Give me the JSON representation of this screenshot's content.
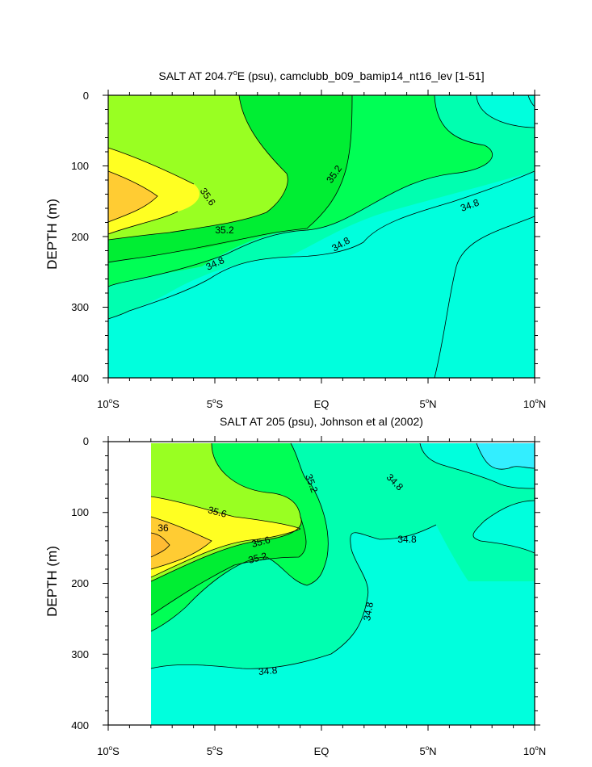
{
  "colors": {
    "lt_34_8": "#00ffdd",
    "c_34_8_35_0": "#00ffb0",
    "c_35_0_35_2": "#00ff55",
    "c_35_2_35_4": "#00ee33",
    "c_35_4_35_6": "#99ff22",
    "c_35_6_35_8": "#ffff22",
    "c_35_8_36_0": "#ffcc33",
    "cyan_deep": "#33eeff",
    "contour": "#000000"
  },
  "chart_data": [
    {
      "type": "contour",
      "title_pre": "SALT AT 204.7",
      "title_sup": "o",
      "title_post": "E (psu), camclubb_b09_bamip14_nt16_lev [1-51]",
      "ylabel": "DEPTH (m)",
      "xlabel": "",
      "xlim": [
        -10,
        10
      ],
      "ylim": [
        0,
        400
      ],
      "yticks": [
        "0",
        "100",
        "200",
        "300",
        "400"
      ],
      "xticks": [
        {
          "num": "10",
          "deg": "o",
          "hemi": "S"
        },
        {
          "num": "5",
          "deg": "o",
          "hemi": "S"
        },
        {
          "num": "EQ",
          "deg": "",
          "hemi": ""
        },
        {
          "num": "5",
          "deg": "o",
          "hemi": "N"
        },
        {
          "num": "10",
          "deg": "o",
          "hemi": "N"
        }
      ],
      "contour_labels": [
        "35.6",
        "35.2",
        "35.2",
        "34.8",
        "34.8",
        "34.8"
      ]
    },
    {
      "type": "contour",
      "title": "SALT AT 205 (psu), Johnson et al (2002)",
      "ylabel": "DEPTH (m)",
      "xlabel": "",
      "xlim": [
        -10,
        10
      ],
      "ylim": [
        0,
        400
      ],
      "data_x_start": -8,
      "yticks": [
        "0",
        "100",
        "200",
        "300",
        "400"
      ],
      "xticks": [
        {
          "num": "10",
          "deg": "o",
          "hemi": "S"
        },
        {
          "num": "5",
          "deg": "o",
          "hemi": "S"
        },
        {
          "num": "EQ",
          "deg": "",
          "hemi": ""
        },
        {
          "num": "5",
          "deg": "o",
          "hemi": "N"
        },
        {
          "num": "10",
          "deg": "o",
          "hemi": "N"
        }
      ],
      "contour_labels": [
        "35.6",
        "36",
        "35.6",
        "35.2",
        "35.2",
        "34.8",
        "34.8",
        "34.8",
        "34.8"
      ]
    }
  ]
}
